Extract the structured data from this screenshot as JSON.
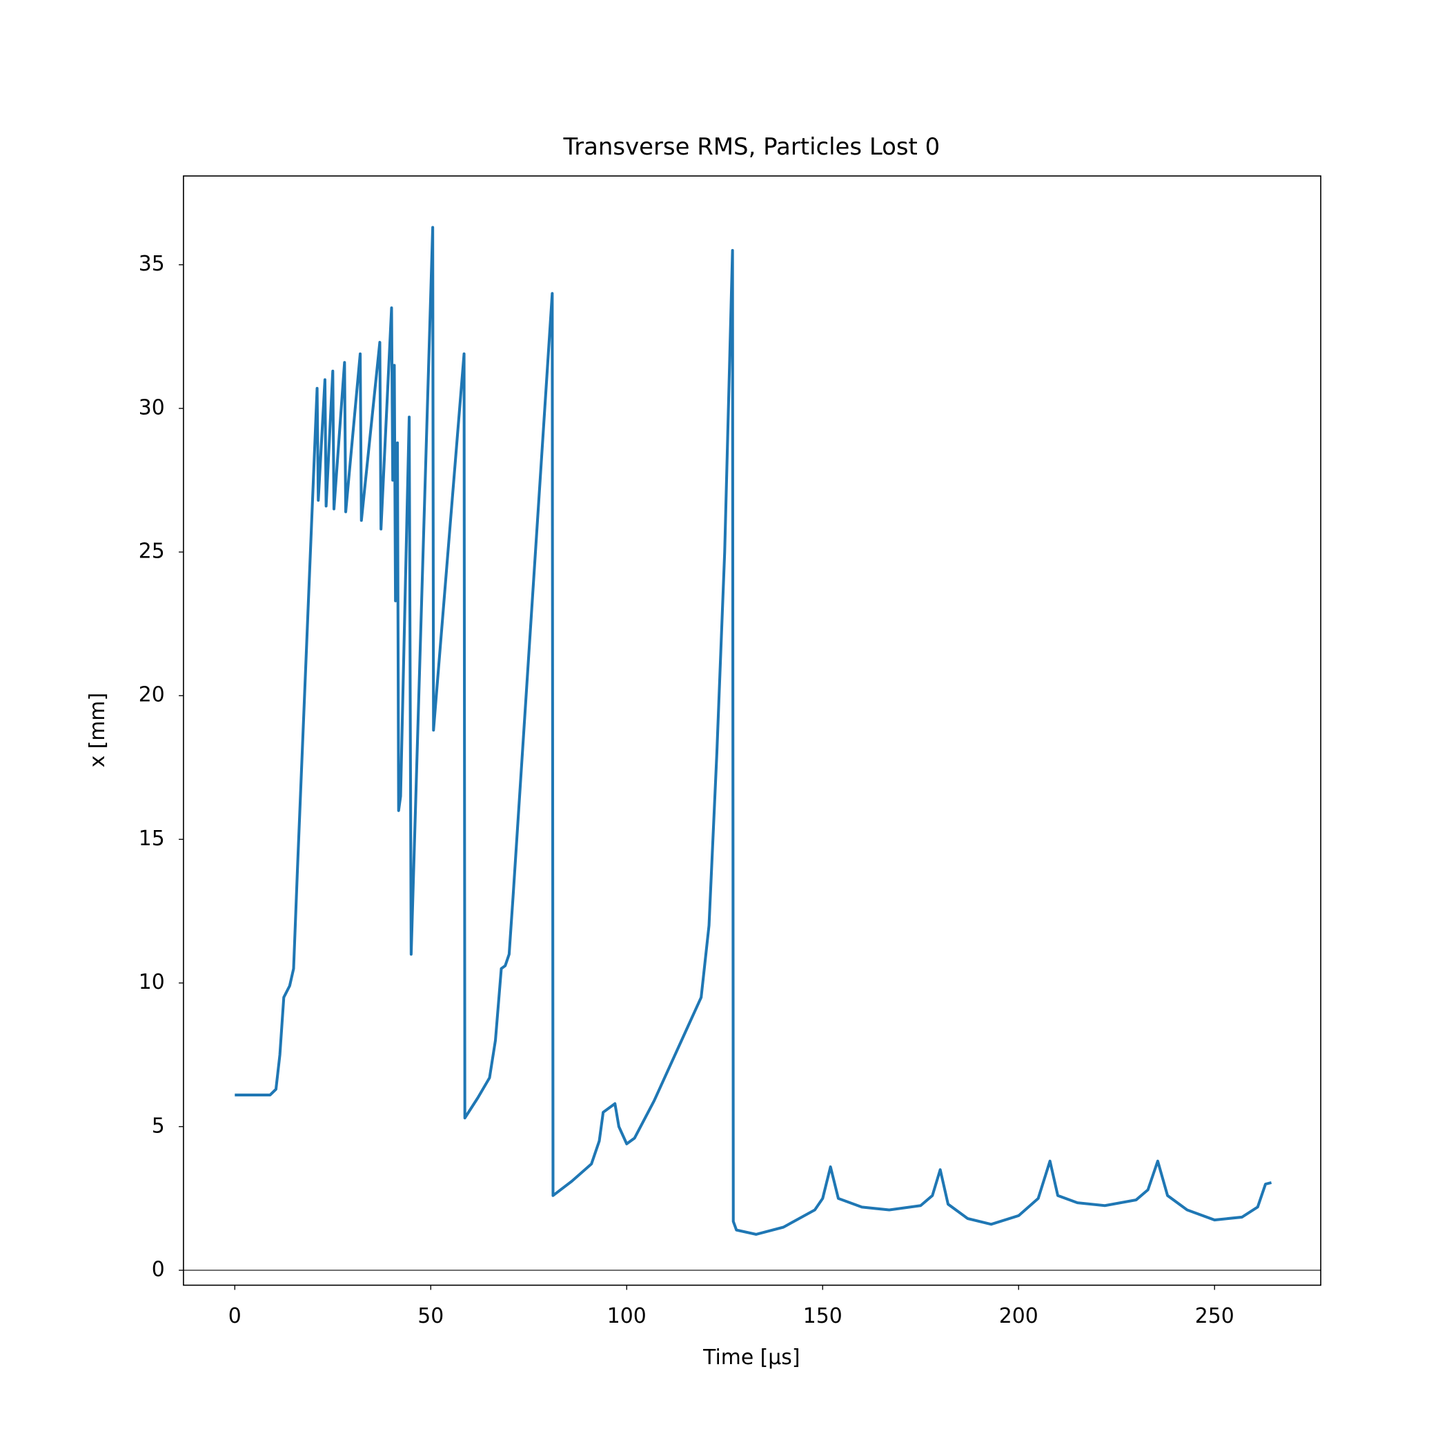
{
  "chart_data": {
    "type": "line",
    "title": "Transverse RMS, Particles Lost 0",
    "xlabel": "Time [μs]",
    "ylabel": "x [mm]",
    "x": [
      0,
      9,
      10.5,
      11.5,
      12.5,
      14,
      15,
      16,
      21,
      21.3,
      23,
      23.3,
      25,
      25.3,
      28,
      28.3,
      32,
      32.3,
      37,
      37.3,
      40,
      40.3,
      40.7,
      41,
      41.5,
      41.8,
      42.3,
      44.5,
      45,
      50.5,
      50.7,
      58.5,
      58.7,
      62,
      65,
      66.5,
      68,
      69,
      70,
      71,
      81,
      81.2,
      86,
      91,
      93,
      94,
      97,
      98,
      100,
      102,
      107,
      115,
      119,
      121,
      123,
      125,
      127,
      127.2,
      128,
      133,
      140,
      148,
      150,
      152,
      154,
      160,
      167,
      175,
      178,
      180,
      182,
      187,
      193,
      200,
      205,
      208,
      210,
      215,
      222,
      230,
      233,
      235.5,
      238,
      243,
      250,
      257,
      261,
      263,
      264.5
    ],
    "series": [
      {
        "name": "x",
        "color": "#1f77b4",
        "values": [
          6.1,
          6.1,
          6.3,
          7.5,
          9.5,
          9.9,
          10.5,
          14,
          30.7,
          26.8,
          31,
          26.6,
          31.3,
          26.5,
          31.6,
          26.4,
          31.9,
          26.1,
          32.3,
          25.8,
          33.5,
          27.5,
          31.5,
          23.3,
          28.8,
          16,
          16.5,
          29.7,
          11,
          36.3,
          18.8,
          31.9,
          5.3,
          6,
          6.7,
          8,
          10.5,
          10.6,
          11,
          13,
          34,
          2.6,
          3.1,
          3.7,
          4.5,
          5.5,
          5.8,
          5,
          4.4,
          4.6,
          5.9,
          8.3,
          9.5,
          12,
          18,
          25,
          35.5,
          1.7,
          1.4,
          1.25,
          1.5,
          2.1,
          2.5,
          3.6,
          2.5,
          2.2,
          2.1,
          2.25,
          2.6,
          3.5,
          2.3,
          1.8,
          1.6,
          1.9,
          2.5,
          3.8,
          2.6,
          2.35,
          2.25,
          2.45,
          2.8,
          3.8,
          2.6,
          2.1,
          1.75,
          1.85,
          2.2,
          3.0,
          3.05
        ]
      }
    ],
    "xlim": [
      -13.1,
      277.1
    ],
    "ylim": [
      -0.52,
      38.09
    ],
    "xticks": [
      0,
      50,
      100,
      150,
      200,
      250
    ],
    "yticks": [
      0,
      5,
      10,
      15,
      20,
      25,
      30,
      35
    ],
    "hline": 0,
    "grid": false
  }
}
